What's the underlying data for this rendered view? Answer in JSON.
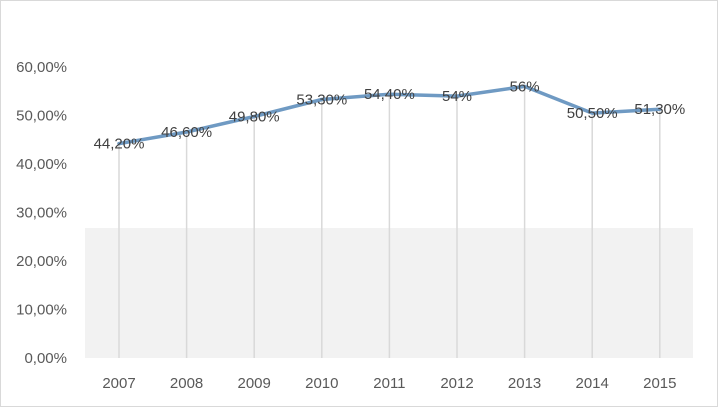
{
  "chart_data": {
    "type": "line",
    "title": "",
    "xlabel": "",
    "ylabel": "",
    "categories": [
      "2007",
      "2008",
      "2009",
      "2010",
      "2011",
      "2012",
      "2013",
      "2014",
      "2015"
    ],
    "values": [
      44.2,
      46.6,
      49.8,
      53.3,
      54.4,
      54,
      56,
      50.5,
      51.3
    ],
    "data_labels": [
      "44,20%",
      "46,60%",
      "49,80%",
      "53,30%",
      "54,40%",
      "54%",
      "56%",
      "50,50%",
      "51,30%"
    ],
    "ylim": [
      0,
      60
    ],
    "yticks": [
      0,
      10,
      20,
      30,
      40,
      50,
      60
    ],
    "ytick_labels": [
      "0,00%",
      "10,00%",
      "20,00%",
      "30,00%",
      "40,00%",
      "50,00%",
      "60,00%"
    ],
    "vertical_drop_lines": true,
    "shaded_band": {
      "from": 0,
      "to": 26.8,
      "color": "#f2f2f2"
    },
    "legend": "none",
    "line_color": "#6f9ac3",
    "drop_line_color": "#d9d9d9"
  }
}
